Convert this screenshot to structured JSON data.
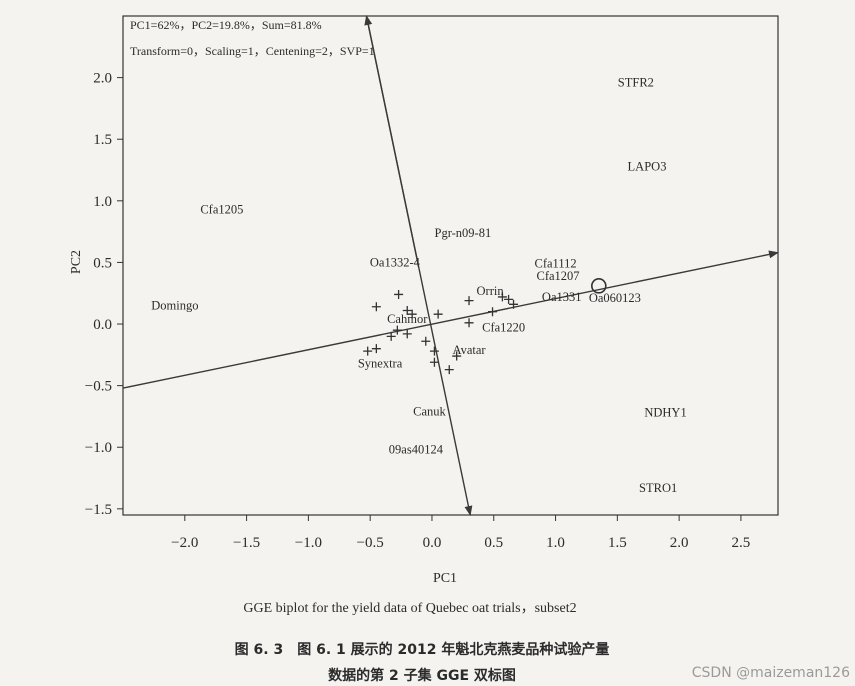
{
  "chart_data": {
    "type": "scatter",
    "xlabel": "PC1",
    "ylabel": "PC2",
    "xlim": [
      -2.5,
      2.8
    ],
    "ylim": [
      -1.55,
      2.5
    ],
    "x_ticks": [
      -2.0,
      -1.5,
      -1.0,
      -0.5,
      0.0,
      0.5,
      1.0,
      1.5,
      2.0,
      2.5
    ],
    "y_ticks": [
      -1.5,
      -1.0,
      -0.5,
      0.0,
      0.5,
      1.0,
      1.5,
      2.0
    ],
    "x_tick_labels": [
      "−2.0",
      "−1.5",
      "−1.0",
      "−0.5",
      "0.0",
      "0.5",
      "1.0",
      "1.5",
      "2.0",
      "2.5"
    ],
    "y_tick_labels": [
      "−1.5",
      "−1.0",
      "−0.5",
      "0.0",
      "0.5",
      "1.0",
      "1.5",
      "2.0"
    ],
    "notes": [
      "PC1=62%，PC2=19.8%，Sum=81.8%",
      "Transform=0，Scaling=1，Centening=2，SVP=1"
    ],
    "environments": [
      {
        "label": "STFR2",
        "x": 1.65,
        "y": 1.96
      },
      {
        "label": "LAPO3",
        "x": 1.74,
        "y": 1.28
      },
      {
        "label": "NDHY1",
        "x": 1.89,
        "y": -0.72
      },
      {
        "label": "STRO1",
        "x": 1.83,
        "y": -1.33
      }
    ],
    "genotype_labels": [
      {
        "label": "Cfa1205",
        "x": -1.7,
        "y": 0.93
      },
      {
        "label": "Pgr-n09-81",
        "x": 0.25,
        "y": 0.74
      },
      {
        "label": "Oa1332-4",
        "x": -0.3,
        "y": 0.5
      },
      {
        "label": "Domingo",
        "x": -2.08,
        "y": 0.15
      },
      {
        "label": "Cfa1112",
        "x": 1.0,
        "y": 0.49
      },
      {
        "label": "Cfa1207",
        "x": 1.02,
        "y": 0.39
      },
      {
        "label": "Orrin",
        "x": 0.47,
        "y": 0.27
      },
      {
        "label": "Oa1331",
        "x": 1.05,
        "y": 0.22
      },
      {
        "label": "Oa060123",
        "x": 1.48,
        "y": 0.21
      },
      {
        "label": "Cahmor",
        "x": -0.2,
        "y": 0.04
      },
      {
        "label": "Cfa1220",
        "x": 0.58,
        "y": -0.03
      },
      {
        "label": "Avatar",
        "x": 0.3,
        "y": -0.21
      },
      {
        "label": "Synextra",
        "x": -0.42,
        "y": -0.32
      },
      {
        "label": "Canuk",
        "x": -0.02,
        "y": -0.71
      },
      {
        "label": "09as40124",
        "x": -0.13,
        "y": -1.02
      }
    ],
    "genotype_markers": [
      {
        "x": -0.45,
        "y": 0.14
      },
      {
        "x": -0.27,
        "y": 0.24
      },
      {
        "x": -0.2,
        "y": 0.11
      },
      {
        "x": -0.16,
        "y": 0.08
      },
      {
        "x": 0.05,
        "y": 0.08
      },
      {
        "x": 0.3,
        "y": 0.19
      },
      {
        "x": 0.57,
        "y": 0.22
      },
      {
        "x": 0.62,
        "y": 0.2
      },
      {
        "x": 0.66,
        "y": 0.16
      },
      {
        "x": 0.49,
        "y": 0.1
      },
      {
        "x": 0.3,
        "y": 0.01
      },
      {
        "x": -0.28,
        "y": -0.05
      },
      {
        "x": -0.2,
        "y": -0.08
      },
      {
        "x": -0.33,
        "y": -0.1
      },
      {
        "x": -0.05,
        "y": -0.14
      },
      {
        "x": -0.45,
        "y": -0.2
      },
      {
        "x": -0.52,
        "y": -0.22
      },
      {
        "x": 0.02,
        "y": -0.22
      },
      {
        "x": 0.2,
        "y": -0.26
      },
      {
        "x": 0.02,
        "y": -0.31
      },
      {
        "x": 0.14,
        "y": -0.37
      }
    ],
    "average_environment_marker": {
      "x": 1.35,
      "y": 0.31
    },
    "aec_abscissa": {
      "from": {
        "x": -2.5,
        "y": -0.52
      },
      "to": {
        "x": 2.8,
        "y": 0.58
      }
    },
    "aec_ordinate": {
      "from": {
        "x": -0.53,
        "y": 2.5
      },
      "to": {
        "x": 0.31,
        "y": -1.55
      }
    }
  },
  "caption": {
    "english": "GGE biplot for the yield data of Quebec oat trials，subset2",
    "chinese_line1": "图 6. 3　图 6. 1 展示的 2012 年魁北克燕麦品种试验产量",
    "chinese_line2": "数据的第 2 子集 GGE 双标图"
  },
  "watermark": "CSDN @maizeman126"
}
